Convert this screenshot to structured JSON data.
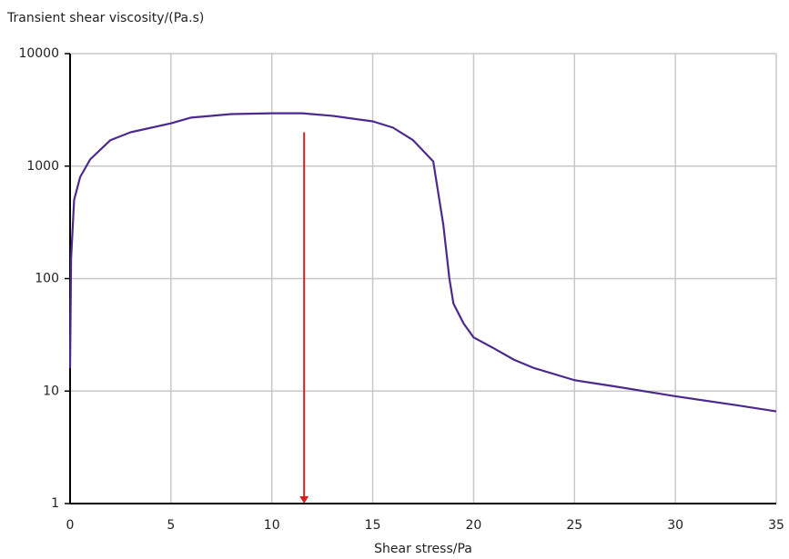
{
  "chart_data": {
    "type": "line",
    "ylabel": "Transient shear viscosity/(Pa.s)",
    "xlabel": "Shear stress/Pa",
    "x": [
      0,
      0.05,
      0.2,
      0.5,
      1,
      2,
      3,
      5,
      6,
      8,
      10,
      11.5,
      13,
      15,
      16,
      17,
      18,
      18.5,
      18.8,
      19,
      19.5,
      20,
      21,
      22,
      23,
      25,
      27,
      30,
      33,
      35
    ],
    "values": [
      16,
      150,
      500,
      800,
      1150,
      1700,
      2000,
      2400,
      2700,
      2900,
      2950,
      2950,
      2800,
      2500,
      2200,
      1700,
      1100,
      300,
      100,
      60,
      40,
      30,
      24,
      19,
      16,
      12.5,
      11,
      9,
      7.5,
      6.6
    ],
    "color": "#4b2a8c",
    "xlim": [
      0,
      35
    ],
    "xticks": [
      0,
      5,
      10,
      15,
      20,
      25,
      30,
      35
    ],
    "ylim": [
      1,
      10000
    ],
    "yticks": [
      1,
      10,
      100,
      1000,
      10000
    ],
    "ylog": true,
    "grid": true,
    "annotations": [
      {
        "type": "arrow",
        "x": 11.6,
        "y": [
          2000,
          1
        ],
        "color": "#d42020"
      }
    ]
  }
}
